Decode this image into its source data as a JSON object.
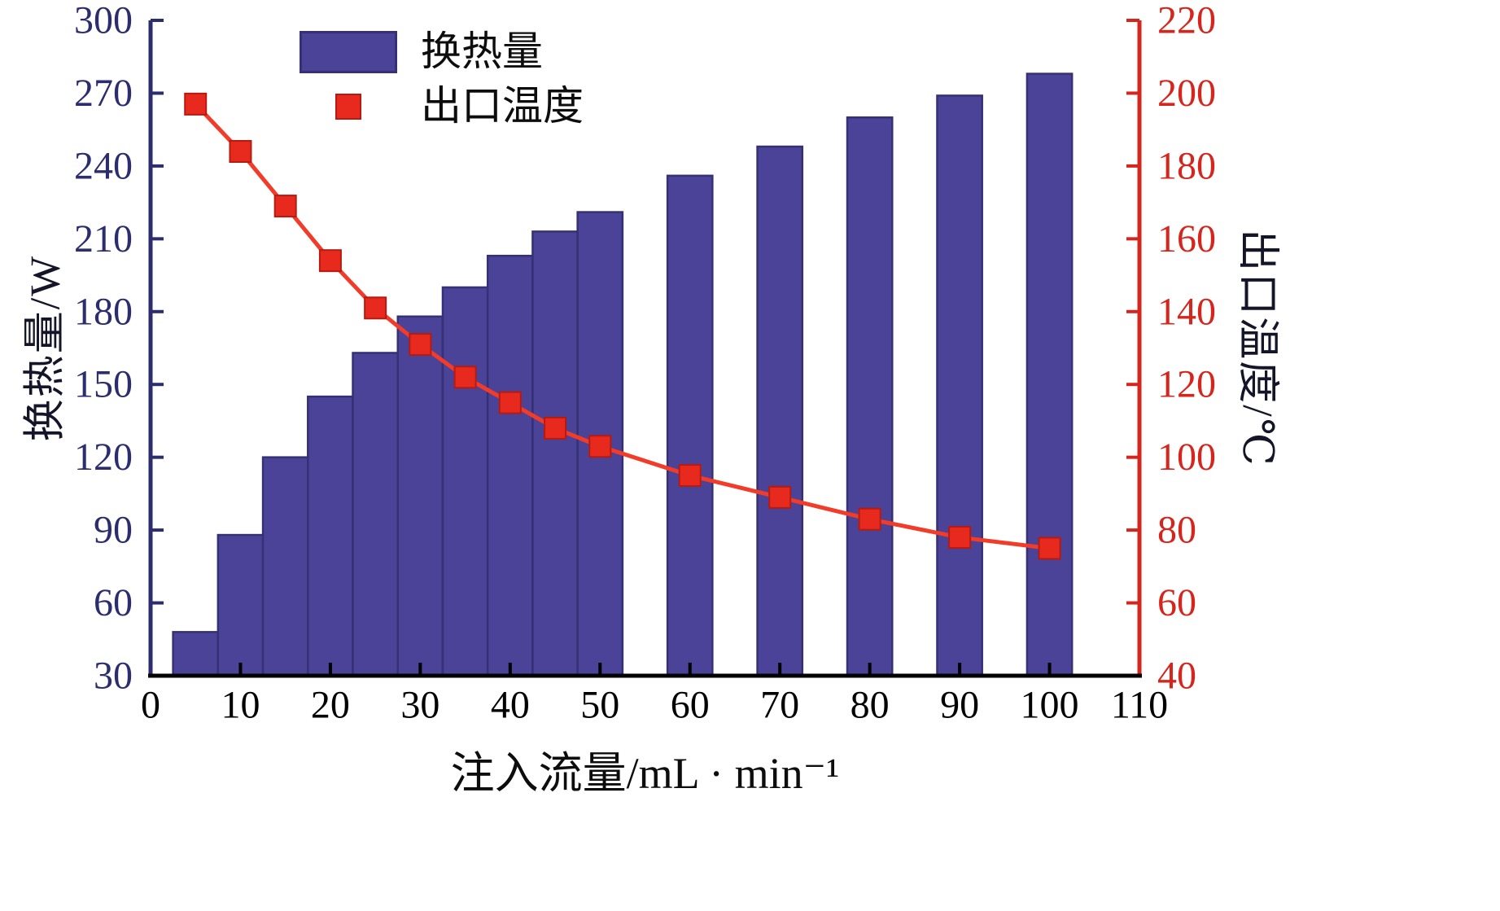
{
  "chart_data": {
    "type": "bar",
    "x": [
      5,
      10,
      15,
      20,
      25,
      30,
      35,
      40,
      45,
      50,
      60,
      70,
      80,
      90,
      100
    ],
    "series": [
      {
        "name": "换热量",
        "type": "bar",
        "axis": "left",
        "values": [
          48,
          88,
          120,
          145,
          163,
          178,
          190,
          203,
          213,
          221,
          236,
          248,
          260,
          269,
          278
        ]
      },
      {
        "name": "出口温度",
        "type": "line",
        "axis": "right",
        "values": [
          197,
          184,
          169,
          154,
          141,
          131,
          122,
          115,
          108,
          103,
          95,
          89,
          83,
          78,
          75
        ]
      }
    ],
    "xlabel": "注入流量/mL · min⁻¹",
    "ylabel_left": "换热量/W",
    "ylabel_right": "出口温度/℃",
    "xlim": [
      0,
      110
    ],
    "ylim_left": [
      30,
      300
    ],
    "ylim_right": [
      40,
      220
    ],
    "xticks": [
      0,
      10,
      20,
      30,
      40,
      50,
      60,
      70,
      80,
      90,
      100,
      110
    ],
    "yticks_left": [
      30,
      60,
      90,
      120,
      150,
      180,
      210,
      240,
      270,
      300
    ],
    "yticks_right": [
      40,
      60,
      80,
      100,
      120,
      140,
      160,
      180,
      200,
      220
    ],
    "bar_width_units": 5,
    "legend_position": "top-left",
    "grid": false,
    "colors": {
      "bar_fill": "#4a4397",
      "bar_edge": "#363075",
      "line": "#f23b28",
      "marker": "#e72a1d",
      "marker_edge": "#b51b10",
      "left_axis": "#2b2d6e",
      "right_axis": "#d6251c",
      "x_axis": "#000000",
      "background": "#ffffff"
    }
  }
}
